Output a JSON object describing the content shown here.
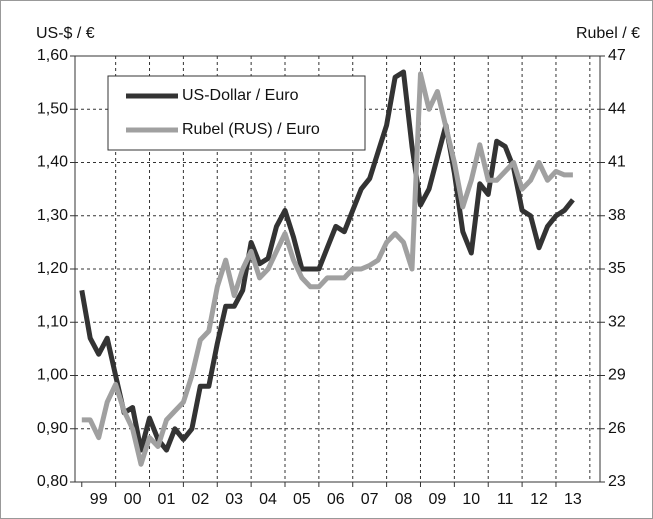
{
  "chart_data": {
    "type": "line",
    "y_label": "US-$ / €",
    "y2_label": "Rubel / €",
    "x": [
      1999,
      1999.25,
      1999.5,
      1999.75,
      2000,
      2000.25,
      2000.5,
      2000.75,
      2001,
      2001.25,
      2001.5,
      2001.75,
      2002,
      2002.25,
      2002.5,
      2002.75,
      2003,
      2003.25,
      2003.5,
      2003.75,
      2004,
      2004.25,
      2004.5,
      2004.75,
      2005,
      2005.25,
      2005.5,
      2005.75,
      2006,
      2006.25,
      2006.5,
      2006.75,
      2007,
      2007.25,
      2007.5,
      2007.75,
      2008,
      2008.25,
      2008.5,
      2008.75,
      2009,
      2009.25,
      2009.5,
      2009.75,
      2010,
      2010.25,
      2010.5,
      2010.75,
      2011,
      2011.25,
      2011.5,
      2011.75,
      2012,
      2012.25,
      2012.5,
      2012.75,
      2013,
      2013.25,
      2013.5
    ],
    "xlim": [
      1998.8,
      2014.3
    ],
    "xticks": [
      {
        "value": 1999.5,
        "label": "99"
      },
      {
        "value": 2000.5,
        "label": "00"
      },
      {
        "value": 2001.5,
        "label": "01"
      },
      {
        "value": 2002.5,
        "label": "02"
      },
      {
        "value": 2003.5,
        "label": "03"
      },
      {
        "value": 2004.5,
        "label": "04"
      },
      {
        "value": 2005.5,
        "label": "05"
      },
      {
        "value": 2006.5,
        "label": "06"
      },
      {
        "value": 2007.5,
        "label": "07"
      },
      {
        "value": 2008.5,
        "label": "08"
      },
      {
        "value": 2009.5,
        "label": "09"
      },
      {
        "value": 2010.5,
        "label": "10"
      },
      {
        "value": 2011.5,
        "label": "11"
      },
      {
        "value": 2012.5,
        "label": "12"
      },
      {
        "value": 2013.5,
        "label": "13"
      }
    ],
    "ylim": [
      0.8,
      1.6
    ],
    "yticks": [
      {
        "value": 0.8,
        "label": "0,80"
      },
      {
        "value": 0.9,
        "label": "0,90"
      },
      {
        "value": 1.0,
        "label": "1,00"
      },
      {
        "value": 1.1,
        "label": "1,10"
      },
      {
        "value": 1.2,
        "label": "1,20"
      },
      {
        "value": 1.3,
        "label": "1,30"
      },
      {
        "value": 1.4,
        "label": "1,40"
      },
      {
        "value": 1.5,
        "label": "1,50"
      },
      {
        "value": 1.6,
        "label": "1,60"
      }
    ],
    "y2lim": [
      23,
      47
    ],
    "y2ticks": [
      23,
      26,
      29,
      32,
      35,
      38,
      41,
      44,
      47
    ],
    "grid": true,
    "legend": "upper left",
    "series": [
      {
        "name": "US-Dollar / Euro",
        "color": "#333333",
        "values": [
          1.16,
          1.07,
          1.04,
          1.07,
          1.0,
          0.93,
          0.94,
          0.86,
          0.92,
          0.88,
          0.86,
          0.9,
          0.88,
          0.9,
          0.98,
          0.98,
          1.06,
          1.13,
          1.13,
          1.16,
          1.25,
          1.21,
          1.22,
          1.28,
          1.31,
          1.26,
          1.2,
          1.2,
          1.2,
          1.24,
          1.28,
          1.27,
          1.31,
          1.35,
          1.37,
          1.42,
          1.47,
          1.56,
          1.57,
          1.43,
          1.32,
          1.35,
          1.41,
          1.47,
          1.38,
          1.27,
          1.23,
          1.36,
          1.34,
          1.44,
          1.43,
          1.39,
          1.31,
          1.3,
          1.24,
          1.28,
          1.3,
          1.31,
          1.33
        ]
      },
      {
        "name": "Rubel (RUS) / Euro",
        "color": "#a0a0a0",
        "axis": "y2",
        "values": [
          26.5,
          26.5,
          25.5,
          27.5,
          28.5,
          27,
          26,
          24,
          25.5,
          25,
          26.5,
          27,
          27.5,
          29,
          31,
          31.5,
          34,
          35.5,
          33.5,
          35,
          36,
          34.5,
          35,
          36,
          37,
          35.5,
          34.5,
          34,
          34,
          34.5,
          34.5,
          34.5,
          35,
          35,
          35.2,
          35.5,
          36.5,
          37,
          36.5,
          35,
          46,
          44,
          45,
          43,
          41,
          38.5,
          40,
          42,
          40,
          40,
          40.5,
          41,
          39.5,
          40,
          41,
          40,
          40.5,
          40.3,
          40.3
        ]
      }
    ]
  }
}
